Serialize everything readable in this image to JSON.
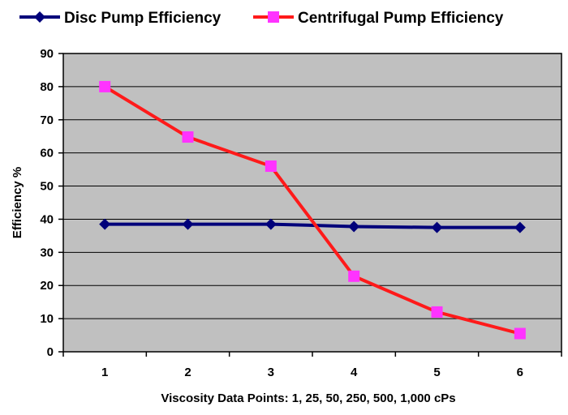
{
  "chart_data": {
    "type": "line",
    "categories": [
      "1",
      "2",
      "3",
      "4",
      "5",
      "6"
    ],
    "series": [
      {
        "name": "Disc Pump Efficiency",
        "values": [
          38.5,
          38.5,
          38.5,
          37.8,
          37.5,
          37.5
        ],
        "color": "#00007a",
        "marker": "diamond"
      },
      {
        "name": "Centrifugal Pump Efficiency",
        "values": [
          80,
          64.8,
          56,
          22.8,
          12,
          5.5
        ],
        "color": "#ff1a1a",
        "marker_color": "#ff33ff",
        "marker": "square"
      }
    ],
    "title": "",
    "xlabel": "Viscosity Data Points: 1, 25, 50, 250, 500, 1,000 cPs",
    "ylabel": "Efficiency %",
    "ylim": [
      0,
      90
    ],
    "yticks": [
      "0",
      "10",
      "20",
      "30",
      "40",
      "50",
      "60",
      "70",
      "80",
      "90"
    ],
    "grid": true,
    "legend_position": "top",
    "plot_background": "#c0c0c0"
  }
}
